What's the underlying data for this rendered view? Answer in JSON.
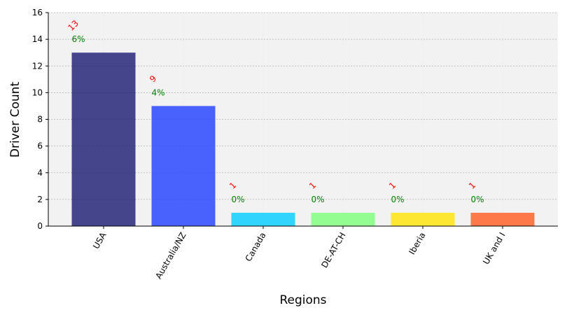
{
  "chart_data": {
    "type": "bar",
    "categories": [
      "USA",
      "Australia/NZ",
      "Canada",
      "DE-AT-CH",
      "Iberia",
      "UK and I"
    ],
    "values": [
      13,
      9,
      1,
      1,
      1,
      1
    ],
    "count_labels": [
      "13",
      "9",
      "1",
      "1",
      "1",
      "1"
    ],
    "percent_labels": [
      "6%",
      "4%",
      "0%",
      "0%",
      "0%",
      "0%"
    ],
    "bar_colors": [
      "#191970",
      "#1e3dff",
      "#00ccff",
      "#7cff79",
      "#ffe400",
      "#ff5a1f"
    ],
    "bar_opacity": 0.8,
    "count_label_color": "#ff0000",
    "percent_label_color": "#008000",
    "xlabel": "Regions",
    "ylabel": "Driver Count",
    "ylim": [
      0,
      16
    ],
    "yticks": [
      0,
      2,
      4,
      6,
      8,
      10,
      12,
      14,
      16
    ],
    "grid": true,
    "plot_background": "#f2f2f2"
  }
}
